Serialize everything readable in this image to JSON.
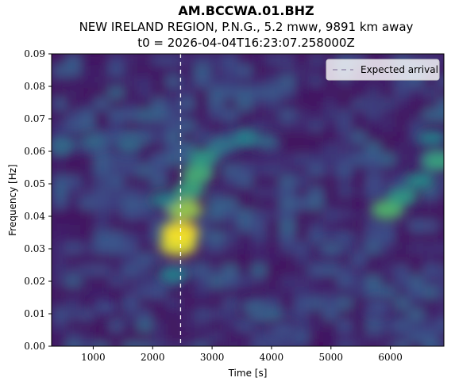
{
  "titles": {
    "station": "AM.BCCWA.01.BHZ",
    "event": "NEW IRELAND REGION, P.N.G., 5.2 mww, 9891 km away",
    "t0": "t0 = 2026-04-04T16:23:07.258000Z"
  },
  "chart_data": {
    "type": "heatmap",
    "xlabel": "Time [s]",
    "ylabel": "Frequency [Hz]",
    "xlim": [
      300,
      6900
    ],
    "ylim": [
      0.0,
      0.09
    ],
    "xticks": [
      1000,
      2000,
      3000,
      4000,
      5000,
      6000
    ],
    "xtick_labels": [
      "1000",
      "2000",
      "3000",
      "4000",
      "5000",
      "6000"
    ],
    "yticks": [
      0.0,
      0.01,
      0.02,
      0.03,
      0.04,
      0.05,
      0.06,
      0.07,
      0.08,
      0.09
    ],
    "ytick_labels": [
      "0.00",
      "0.01",
      "0.02",
      "0.03",
      "0.04",
      "0.05",
      "0.06",
      "0.07",
      "0.08",
      "0.09"
    ],
    "colormap": "viridis",
    "expected_arrival_s": 2470,
    "legend": {
      "entries": [
        "Expected arrival"
      ],
      "placement": "top-right"
    },
    "energy_features": [
      {
        "t": 2430,
        "f": 0.031,
        "intensity": 0.95
      },
      {
        "t": 2460,
        "f": 0.035,
        "intensity": 1.0
      },
      {
        "t": 2540,
        "f": 0.042,
        "intensity": 0.85
      },
      {
        "t": 2620,
        "f": 0.048,
        "intensity": 0.6
      },
      {
        "t": 2750,
        "f": 0.053,
        "intensity": 0.65
      },
      {
        "t": 2850,
        "f": 0.058,
        "intensity": 0.55
      },
      {
        "t": 2200,
        "f": 0.045,
        "intensity": 0.45
      },
      {
        "t": 2350,
        "f": 0.022,
        "intensity": 0.45
      },
      {
        "t": 3200,
        "f": 0.062,
        "intensity": 0.4
      },
      {
        "t": 3600,
        "f": 0.064,
        "intensity": 0.45
      },
      {
        "t": 3900,
        "f": 0.063,
        "intensity": 0.35
      },
      {
        "t": 500,
        "f": 0.062,
        "intensity": 0.35
      },
      {
        "t": 1000,
        "f": 0.063,
        "intensity": 0.35
      },
      {
        "t": 1600,
        "f": 0.062,
        "intensity": 0.35
      },
      {
        "t": 5950,
        "f": 0.042,
        "intensity": 0.7
      },
      {
        "t": 6200,
        "f": 0.046,
        "intensity": 0.55
      },
      {
        "t": 6500,
        "f": 0.051,
        "intensity": 0.5
      },
      {
        "t": 6800,
        "f": 0.057,
        "intensity": 0.6
      },
      {
        "t": 6700,
        "f": 0.064,
        "intensity": 0.45
      },
      {
        "t": 5000,
        "f": 0.03,
        "intensity": 0.3
      },
      {
        "t": 3700,
        "f": 0.012,
        "intensity": 0.3
      },
      {
        "t": 4200,
        "f": 0.005,
        "intensity": 0.25
      },
      {
        "t": 1200,
        "f": 0.012,
        "intensity": 0.25
      },
      {
        "t": 5800,
        "f": 0.012,
        "intensity": 0.25
      }
    ]
  }
}
